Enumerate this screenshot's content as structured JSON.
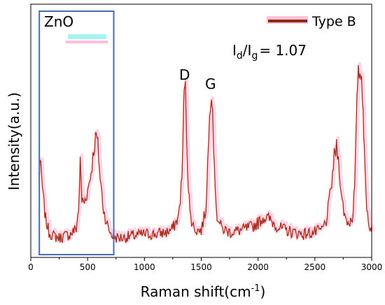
{
  "chart_data": {
    "type": "line",
    "xlabel": "Raman shift(cm",
    "xlabel_sup": "-1",
    "xlabel_suffix": ")",
    "ylabel": "Intensity(a.u.)",
    "xlim": [
      0,
      3000
    ],
    "xticks": [
      "0",
      "500",
      "1000",
      "1500",
      "2000",
      "2500",
      "3000"
    ],
    "grid": false,
    "legend": {
      "position": "top-right"
    },
    "series": [
      {
        "name": "Type B",
        "color": "#8b2c12",
        "shadow_color": "#ff6aa8",
        "x": [
          70,
          80,
          95,
          110,
          130,
          160,
          200,
          250,
          300,
          350,
          400,
          420,
          435,
          450,
          470,
          500,
          530,
          555,
          575,
          590,
          610,
          640,
          680,
          720,
          760,
          800,
          900,
          1000,
          1100,
          1200,
          1250,
          1300,
          1330,
          1345,
          1355,
          1365,
          1380,
          1400,
          1430,
          1460,
          1500,
          1540,
          1565,
          1580,
          1590,
          1600,
          1615,
          1640,
          1680,
          1750,
          1850,
          1950,
          2000,
          2050,
          2100,
          2150,
          2200,
          2300,
          2400,
          2500,
          2560,
          2600,
          2640,
          2670,
          2690,
          2700,
          2715,
          2740,
          2770,
          2800,
          2830,
          2850,
          2865,
          2875,
          2890,
          2905,
          2915,
          2925,
          2935,
          2950,
          2970,
          3000
        ],
        "y": [
          0.36,
          0.44,
          0.35,
          0.24,
          0.13,
          0.06,
          0.04,
          0.03,
          0.04,
          0.05,
          0.08,
          0.18,
          0.43,
          0.23,
          0.22,
          0.28,
          0.38,
          0.5,
          0.58,
          0.52,
          0.35,
          0.18,
          0.08,
          0.04,
          0.03,
          0.03,
          0.04,
          0.05,
          0.05,
          0.06,
          0.08,
          0.14,
          0.35,
          0.7,
          0.88,
          0.75,
          0.4,
          0.16,
          0.09,
          0.07,
          0.07,
          0.18,
          0.55,
          0.76,
          0.83,
          0.72,
          0.38,
          0.14,
          0.08,
          0.06,
          0.07,
          0.09,
          0.11,
          0.14,
          0.13,
          0.1,
          0.08,
          0.06,
          0.05,
          0.06,
          0.07,
          0.12,
          0.28,
          0.46,
          0.51,
          0.48,
          0.4,
          0.22,
          0.13,
          0.11,
          0.14,
          0.3,
          0.62,
          0.86,
          0.92,
          0.9,
          0.86,
          0.72,
          0.48,
          0.25,
          0.12,
          0.06
        ]
      }
    ],
    "annotations": {
      "zno_label": "ZnO",
      "d_label": "D",
      "g_label": "G",
      "ratio": {
        "i1": "I",
        "sub1": "d",
        "slash": "/",
        "i2": "I",
        "sub2": "g",
        "value": "= 1.07"
      }
    },
    "highlight_box": {
      "x_from": 75,
      "x_to": 730,
      "color": "#4a6cb0"
    }
  }
}
